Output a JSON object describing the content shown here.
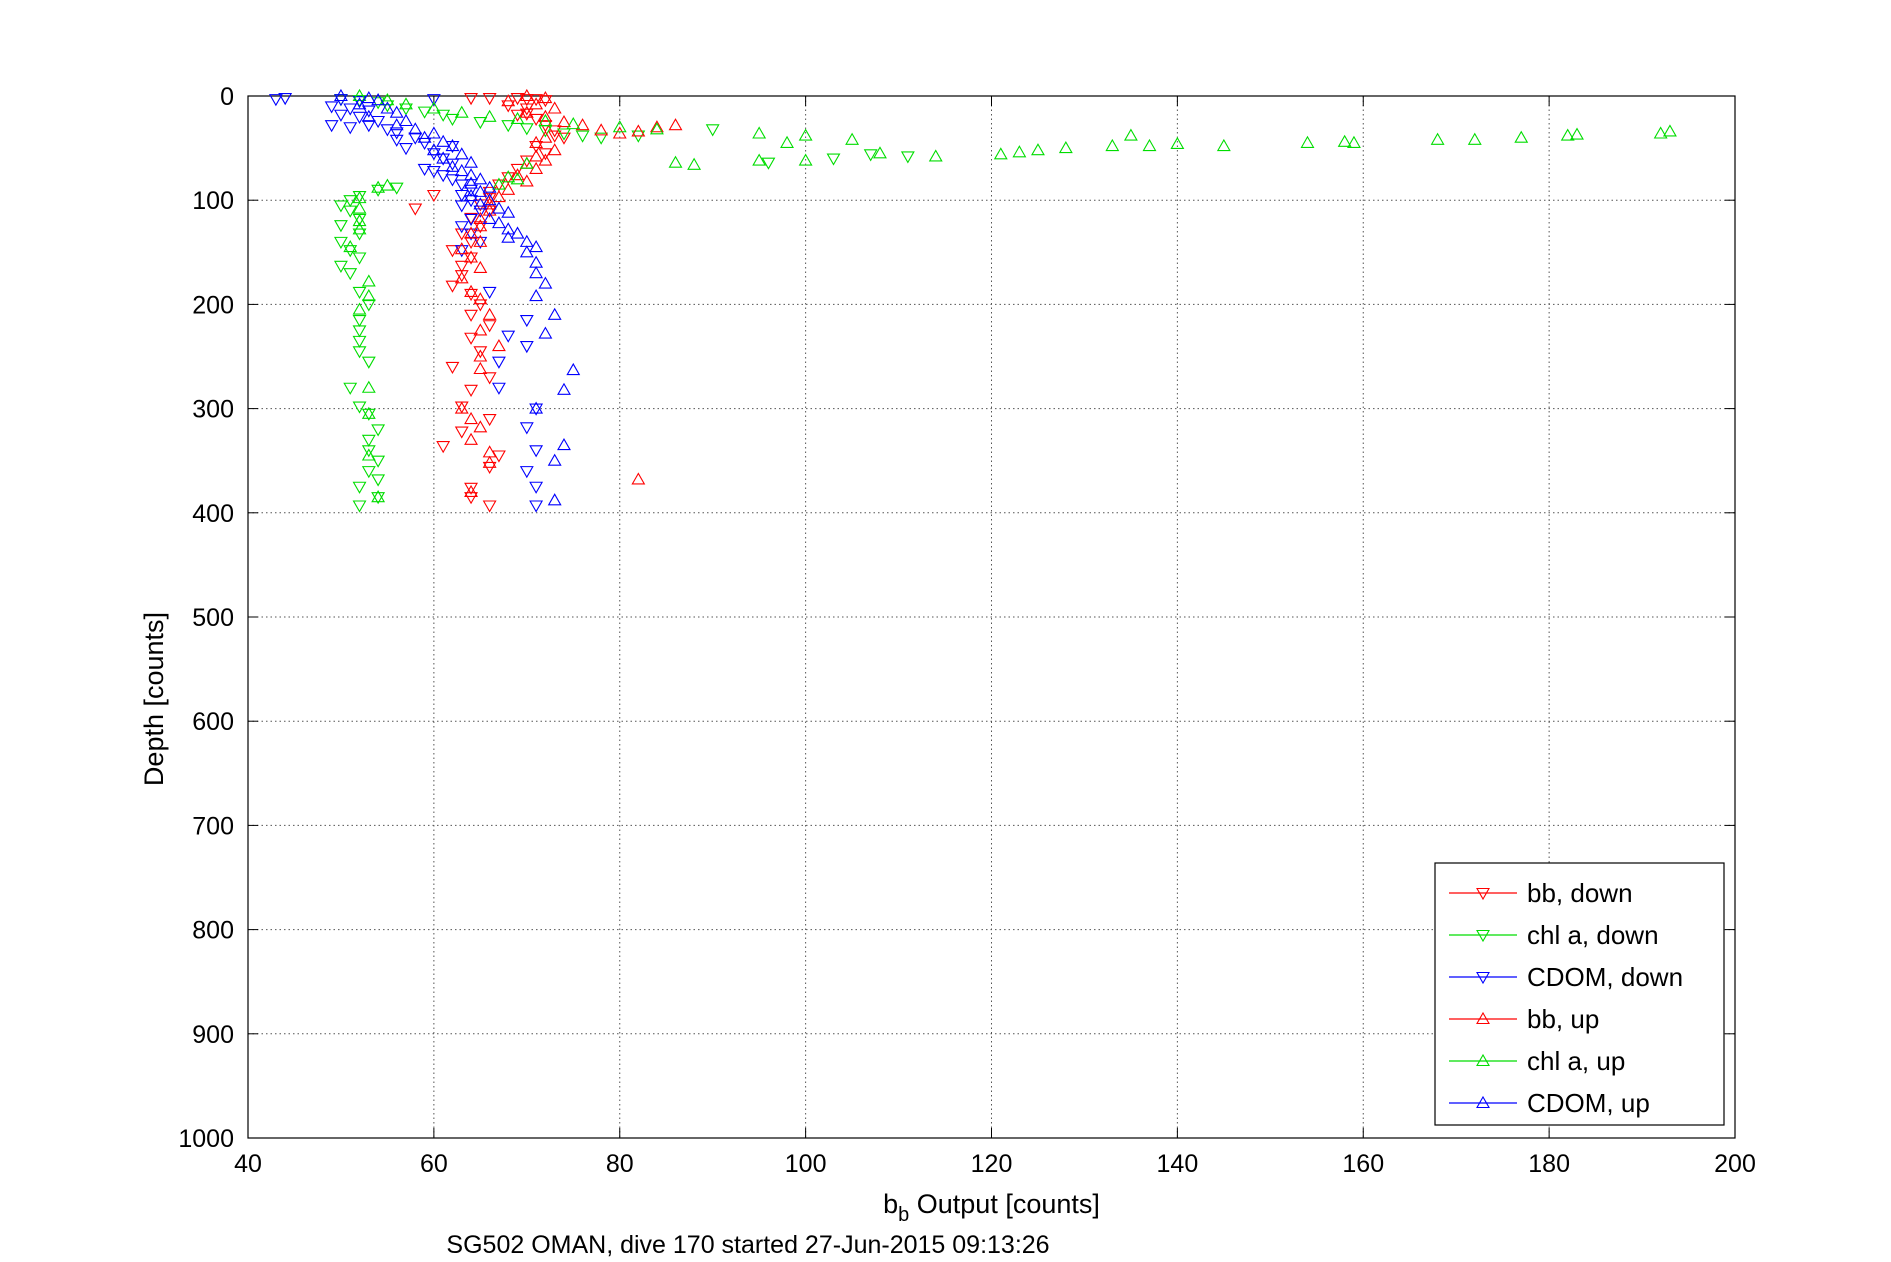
{
  "chart_data": {
    "type": "scatter",
    "xlabel_main": "b",
    "xlabel_sub": "b",
    "xlabel_rest": " Output [counts]",
    "ylabel": "Depth [counts]",
    "footnote": "SG502 OMAN, dive 170 started 27-Jun-2015 09:13:26",
    "xlim": [
      40,
      200
    ],
    "ylim": [
      0,
      1000
    ],
    "y_reversed": true,
    "grid": true,
    "legend_position": "bottom-right",
    "x_ticks": [
      "40",
      "60",
      "80",
      "100",
      "120",
      "140",
      "160",
      "180",
      "200"
    ],
    "y_ticks": [
      "0",
      "100",
      "200",
      "300",
      "400",
      "500",
      "600",
      "700",
      "800",
      "900",
      "1000"
    ],
    "series": [
      {
        "name": "bb, down",
        "color": "#ff0000",
        "marker": "triangle-down",
        "points": [
          [
            64,
            2
          ],
          [
            66,
            2
          ],
          [
            69,
            2
          ],
          [
            70,
            3
          ],
          [
            71,
            3
          ],
          [
            72,
            4
          ],
          [
            68,
            9
          ],
          [
            70,
            12
          ],
          [
            69,
            18
          ],
          [
            71,
            22
          ],
          [
            72,
            28
          ],
          [
            73,
            33
          ],
          [
            74,
            40
          ],
          [
            71,
            48
          ],
          [
            72,
            55
          ],
          [
            70,
            62
          ],
          [
            69,
            70
          ],
          [
            68,
            78
          ],
          [
            67,
            85
          ],
          [
            66,
            92
          ],
          [
            66,
            98
          ],
          [
            65,
            104
          ],
          [
            66,
            110
          ],
          [
            64,
            117
          ],
          [
            65,
            125
          ],
          [
            63,
            132
          ],
          [
            64,
            140
          ],
          [
            62,
            148
          ],
          [
            64,
            155
          ],
          [
            63,
            163
          ],
          [
            63,
            172
          ],
          [
            62,
            182
          ],
          [
            64,
            190
          ],
          [
            65,
            200
          ],
          [
            64,
            210
          ],
          [
            66,
            220
          ],
          [
            64,
            232
          ],
          [
            65,
            245
          ],
          [
            62,
            260
          ],
          [
            66,
            270
          ],
          [
            64,
            282
          ],
          [
            63,
            298
          ],
          [
            66,
            310
          ],
          [
            63,
            322
          ],
          [
            61,
            336
          ],
          [
            67,
            345
          ],
          [
            66,
            356
          ],
          [
            64,
            376
          ],
          [
            64,
            385
          ],
          [
            66,
            393
          ],
          [
            58,
            108
          ],
          [
            60,
            95
          ],
          [
            73,
            38
          ],
          [
            70,
            17
          ]
        ]
      },
      {
        "name": "chl a, down",
        "color": "#00dd00",
        "marker": "triangle-down",
        "points": [
          [
            50,
            3
          ],
          [
            52,
            4
          ],
          [
            54,
            6
          ],
          [
            55,
            9
          ],
          [
            57,
            12
          ],
          [
            59,
            15
          ],
          [
            61,
            18
          ],
          [
            62,
            22
          ],
          [
            65,
            25
          ],
          [
            68,
            28
          ],
          [
            70,
            31
          ],
          [
            72,
            33
          ],
          [
            74,
            36
          ],
          [
            76,
            38
          ],
          [
            78,
            40
          ],
          [
            82,
            38
          ],
          [
            90,
            32
          ],
          [
            96,
            64
          ],
          [
            103,
            60
          ],
          [
            107,
            56
          ],
          [
            111,
            58
          ],
          [
            56,
            88
          ],
          [
            54,
            90
          ],
          [
            52,
            96
          ],
          [
            51,
            100
          ],
          [
            50,
            105
          ],
          [
            51,
            110
          ],
          [
            52,
            118
          ],
          [
            50,
            124
          ],
          [
            52,
            132
          ],
          [
            50,
            140
          ],
          [
            51,
            148
          ],
          [
            52,
            155
          ],
          [
            50,
            163
          ],
          [
            51,
            170
          ],
          [
            52,
            188
          ],
          [
            53,
            200
          ],
          [
            52,
            215
          ],
          [
            52,
            225
          ],
          [
            52,
            235
          ],
          [
            52,
            245
          ],
          [
            53,
            255
          ],
          [
            51,
            280
          ],
          [
            52,
            298
          ],
          [
            53,
            305
          ],
          [
            54,
            320
          ],
          [
            53,
            330
          ],
          [
            53,
            340
          ],
          [
            54,
            350
          ],
          [
            53,
            360
          ],
          [
            54,
            368
          ],
          [
            52,
            375
          ],
          [
            54,
            385
          ],
          [
            52,
            393
          ]
        ]
      },
      {
        "name": "CDOM, down",
        "color": "#0000ff",
        "marker": "triangle-down",
        "points": [
          [
            43,
            3
          ],
          [
            44,
            2
          ],
          [
            50,
            3
          ],
          [
            52,
            5
          ],
          [
            49,
            10
          ],
          [
            51,
            12
          ],
          [
            53,
            14
          ],
          [
            50,
            18
          ],
          [
            52,
            20
          ],
          [
            54,
            24
          ],
          [
            49,
            28
          ],
          [
            51,
            30
          ],
          [
            55,
            32
          ],
          [
            56,
            35
          ],
          [
            53,
            28
          ],
          [
            58,
            40
          ],
          [
            59,
            45
          ],
          [
            57,
            50
          ],
          [
            60,
            55
          ],
          [
            61,
            60
          ],
          [
            62,
            65
          ],
          [
            59,
            70
          ],
          [
            60,
            72
          ],
          [
            61,
            76
          ],
          [
            62,
            80
          ],
          [
            63,
            85
          ],
          [
            64,
            90
          ],
          [
            63,
            95
          ],
          [
            64,
            100
          ],
          [
            63,
            105
          ],
          [
            65,
            110
          ],
          [
            64,
            118
          ],
          [
            63,
            125
          ],
          [
            64,
            132
          ],
          [
            65,
            140
          ],
          [
            63,
            148
          ],
          [
            66,
            188
          ],
          [
            70,
            215
          ],
          [
            68,
            230
          ],
          [
            70,
            240
          ],
          [
            67,
            255
          ],
          [
            67,
            280
          ],
          [
            71,
            300
          ],
          [
            70,
            318
          ],
          [
            71,
            340
          ],
          [
            70,
            360
          ],
          [
            71,
            375
          ],
          [
            71,
            393
          ],
          [
            60,
            3
          ],
          [
            56,
            42
          ],
          [
            62,
            48
          ]
        ]
      },
      {
        "name": "bb, up",
        "color": "#ff0000",
        "marker": "triangle-up",
        "points": [
          [
            70,
            0
          ],
          [
            72,
            2
          ],
          [
            68,
            5
          ],
          [
            71,
            8
          ],
          [
            73,
            12
          ],
          [
            70,
            16
          ],
          [
            72,
            20
          ],
          [
            74,
            25
          ],
          [
            76,
            28
          ],
          [
            78,
            33
          ],
          [
            80,
            36
          ],
          [
            82,
            34
          ],
          [
            84,
            30
          ],
          [
            86,
            28
          ],
          [
            72,
            40
          ],
          [
            71,
            45
          ],
          [
            73,
            52
          ],
          [
            71,
            58
          ],
          [
            72,
            62
          ],
          [
            70,
            65
          ],
          [
            71,
            70
          ],
          [
            69,
            76
          ],
          [
            70,
            82
          ],
          [
            68,
            90
          ],
          [
            67,
            97
          ],
          [
            66,
            104
          ],
          [
            66,
            110
          ],
          [
            65,
            118
          ],
          [
            65,
            125
          ],
          [
            64,
            132
          ],
          [
            65,
            140
          ],
          [
            63,
            147
          ],
          [
            64,
            155
          ],
          [
            65,
            165
          ],
          [
            63,
            175
          ],
          [
            64,
            188
          ],
          [
            65,
            195
          ],
          [
            66,
            210
          ],
          [
            65,
            225
          ],
          [
            67,
            240
          ],
          [
            65,
            250
          ],
          [
            65,
            262
          ],
          [
            63,
            300
          ],
          [
            64,
            310
          ],
          [
            65,
            318
          ],
          [
            64,
            330
          ],
          [
            66,
            342
          ],
          [
            66,
            352
          ],
          [
            82,
            368
          ],
          [
            64,
            380
          ]
        ]
      },
      {
        "name": "chl a, up",
        "color": "#00dd00",
        "marker": "triangle-up",
        "points": [
          [
            52,
            0
          ],
          [
            55,
            4
          ],
          [
            57,
            8
          ],
          [
            60,
            12
          ],
          [
            63,
            16
          ],
          [
            66,
            20
          ],
          [
            69,
            22
          ],
          [
            72,
            24
          ],
          [
            75,
            27
          ],
          [
            80,
            30
          ],
          [
            84,
            32
          ],
          [
            95,
            36
          ],
          [
            100,
            38
          ],
          [
            105,
            42
          ],
          [
            98,
            45
          ],
          [
            86,
            64
          ],
          [
            88,
            66
          ],
          [
            95,
            62
          ],
          [
            100,
            62
          ],
          [
            108,
            55
          ],
          [
            114,
            58
          ],
          [
            121,
            56
          ],
          [
            123,
            54
          ],
          [
            125,
            52
          ],
          [
            128,
            50
          ],
          [
            133,
            48
          ],
          [
            135,
            38
          ],
          [
            137,
            48
          ],
          [
            140,
            46
          ],
          [
            145,
            48
          ],
          [
            154,
            45
          ],
          [
            158,
            44
          ],
          [
            159,
            45
          ],
          [
            168,
            42
          ],
          [
            172,
            42
          ],
          [
            177,
            40
          ],
          [
            182,
            38
          ],
          [
            183,
            37
          ],
          [
            192,
            36
          ],
          [
            193,
            34
          ],
          [
            70,
            65
          ],
          [
            68,
            78
          ],
          [
            69,
            80
          ],
          [
            67,
            85
          ],
          [
            54,
            88
          ],
          [
            55,
            86
          ],
          [
            52,
            98
          ],
          [
            52,
            108
          ],
          [
            52,
            120
          ],
          [
            52,
            128
          ],
          [
            51,
            145
          ],
          [
            53,
            178
          ],
          [
            53,
            192
          ],
          [
            52,
            205
          ],
          [
            53,
            280
          ],
          [
            53,
            305
          ],
          [
            53,
            345
          ],
          [
            54,
            385
          ]
        ]
      },
      {
        "name": "CDOM, up",
        "color": "#0000ff",
        "marker": "triangle-up",
        "points": [
          [
            50,
            0
          ],
          [
            53,
            2
          ],
          [
            54,
            4
          ],
          [
            52,
            8
          ],
          [
            55,
            12
          ],
          [
            56,
            16
          ],
          [
            53,
            20
          ],
          [
            57,
            24
          ],
          [
            56,
            28
          ],
          [
            58,
            32
          ],
          [
            60,
            36
          ],
          [
            59,
            40
          ],
          [
            61,
            44
          ],
          [
            62,
            48
          ],
          [
            60,
            52
          ],
          [
            63,
            56
          ],
          [
            61,
            60
          ],
          [
            64,
            64
          ],
          [
            62,
            68
          ],
          [
            63,
            72
          ],
          [
            64,
            76
          ],
          [
            65,
            80
          ],
          [
            64,
            84
          ],
          [
            66,
            88
          ],
          [
            65,
            92
          ],
          [
            64,
            96
          ],
          [
            66,
            100
          ],
          [
            65,
            104
          ],
          [
            67,
            108
          ],
          [
            68,
            112
          ],
          [
            66,
            118
          ],
          [
            67,
            122
          ],
          [
            68,
            128
          ],
          [
            69,
            132
          ],
          [
            68,
            136
          ],
          [
            70,
            140
          ],
          [
            71,
            145
          ],
          [
            70,
            150
          ],
          [
            71,
            160
          ],
          [
            71,
            170
          ],
          [
            72,
            180
          ],
          [
            71,
            192
          ],
          [
            73,
            210
          ],
          [
            72,
            228
          ],
          [
            75,
            263
          ],
          [
            74,
            282
          ],
          [
            71,
            300
          ],
          [
            74,
            335
          ],
          [
            73,
            350
          ],
          [
            73,
            388
          ]
        ]
      }
    ]
  }
}
